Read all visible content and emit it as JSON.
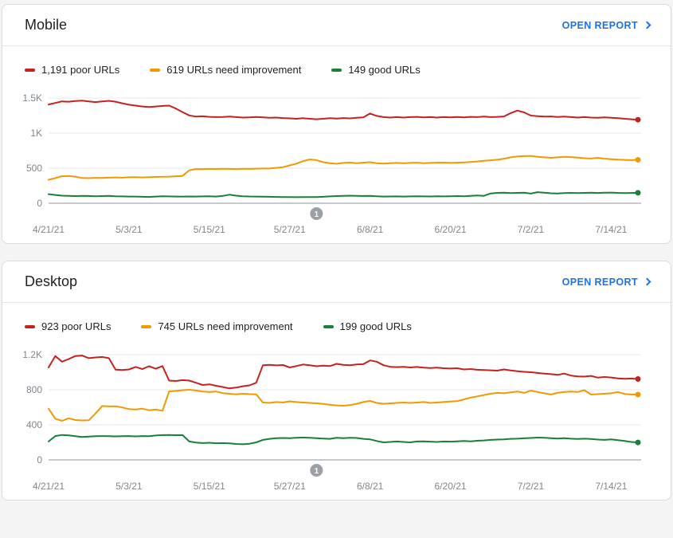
{
  "page": {
    "background": "#f4f4f4"
  },
  "colors": {
    "poor": "#c5221f",
    "needs_improvement": "#f29900",
    "good": "#188038",
    "link_blue": "#1a73e8",
    "title_text": "#202124",
    "legend_text": "#202124",
    "axis_text": "#80868b",
    "gridline": "#e8eaed",
    "zero_axis_line": "#909398",
    "annotation_marker": "#9aa0a6",
    "card_background": "#ffffff",
    "card_border": "#dadce0"
  },
  "cards": [
    {
      "title": "Mobile",
      "open_report": {
        "label": "OPEN REPORT",
        "icon": "chevron-right"
      },
      "legend": [
        {
          "label": "1,191 poor URLs",
          "count": "1,191",
          "status": "poor"
        },
        {
          "label": "619 URLs need improvement",
          "count": "619",
          "status": "needs improvement"
        },
        {
          "label": "149 good URLs",
          "count": "149",
          "status": "good"
        }
      ]
    },
    {
      "title": "Desktop",
      "open_report": {
        "label": "OPEN REPORT",
        "icon": "chevron-right"
      },
      "legend": [
        {
          "label": "923 poor URLs",
          "count": "923",
          "status": "poor"
        },
        {
          "label": "745 URLs need improvement",
          "count": "745",
          "status": "needs improvement"
        },
        {
          "label": "199 good URLs",
          "count": "199",
          "status": "good"
        }
      ]
    }
  ],
  "chart_data": [
    {
      "type": "line",
      "title": "Mobile",
      "grid": true,
      "legend_position": "top",
      "x_axis": {
        "tick_labels": [
          "4/21/21",
          "5/3/21",
          "5/15/21",
          "5/27/21",
          "6/8/21",
          "6/20/21",
          "7/2/21",
          "7/14/21"
        ],
        "tick_days": [
          0,
          12,
          24,
          36,
          48,
          60,
          72,
          84
        ],
        "days_total": 88
      },
      "y_axis": {
        "max": 1500,
        "ticks": [
          {
            "value": 0,
            "label": "0"
          },
          {
            "value": 500,
            "label": "500"
          },
          {
            "value": 1000,
            "label": "1K"
          },
          {
            "value": 1500,
            "label": "1.5K"
          }
        ]
      },
      "annotation": {
        "label": "1",
        "day": 40
      },
      "series": [
        {
          "name": "poor URLs",
          "color": "#c5221f",
          "end_value": 1191,
          "values": [
            1408,
            1430,
            1452,
            1448,
            1458,
            1462,
            1452,
            1442,
            1452,
            1460,
            1448,
            1425,
            1405,
            1392,
            1380,
            1372,
            1380,
            1388,
            1392,
            1350,
            1300,
            1252,
            1235,
            1240,
            1232,
            1228,
            1230,
            1235,
            1228,
            1222,
            1225,
            1230,
            1225,
            1218,
            1222,
            1215,
            1210,
            1205,
            1212,
            1205,
            1198,
            1205,
            1212,
            1208,
            1215,
            1210,
            1218,
            1225,
            1280,
            1245,
            1228,
            1222,
            1228,
            1222,
            1228,
            1232,
            1225,
            1228,
            1222,
            1228,
            1225,
            1230,
            1225,
            1232,
            1228,
            1235,
            1228,
            1232,
            1238,
            1285,
            1322,
            1295,
            1250,
            1242,
            1235,
            1238,
            1230,
            1235,
            1228,
            1222,
            1228,
            1222,
            1218,
            1225,
            1218,
            1212,
            1205,
            1198,
            1191
          ]
        },
        {
          "name": "URLs need improvement",
          "color": "#f29900",
          "end_value": 619,
          "values": [
            335,
            358,
            385,
            390,
            378,
            360,
            358,
            362,
            360,
            365,
            368,
            365,
            370,
            372,
            368,
            372,
            375,
            378,
            380,
            385,
            390,
            470,
            488,
            485,
            490,
            488,
            492,
            490,
            488,
            492,
            490,
            493,
            495,
            495,
            505,
            515,
            540,
            565,
            600,
            625,
            615,
            585,
            570,
            562,
            575,
            580,
            572,
            578,
            585,
            570,
            565,
            572,
            575,
            570,
            575,
            578,
            572,
            575,
            578,
            580,
            575,
            578,
            582,
            588,
            595,
            605,
            612,
            620,
            635,
            655,
            668,
            672,
            675,
            662,
            655,
            648,
            655,
            662,
            658,
            650,
            642,
            638,
            648,
            635,
            628,
            622,
            618,
            615,
            619
          ]
        },
        {
          "name": "good URLs",
          "color": "#188038",
          "end_value": 149,
          "values": [
            130,
            118,
            108,
            104,
            102,
            105,
            103,
            100,
            102,
            104,
            100,
            98,
            96,
            95,
            92,
            90,
            95,
            100,
            98,
            96,
            95,
            97,
            96,
            98,
            100,
            95,
            105,
            122,
            108,
            100,
            97,
            95,
            93,
            92,
            90,
            88,
            87,
            86,
            88,
            87,
            88,
            92,
            98,
            102,
            105,
            108,
            106,
            103,
            105,
            100,
            96,
            97,
            98,
            96,
            98,
            100,
            98,
            97,
            99,
            98,
            100,
            102,
            100,
            104,
            110,
            106,
            140,
            148,
            150,
            146,
            148,
            150,
            138,
            158,
            150,
            142,
            140,
            145,
            148,
            146,
            148,
            150,
            147,
            150,
            152,
            148,
            145,
            147,
            149
          ]
        }
      ]
    },
    {
      "type": "line",
      "title": "Desktop",
      "grid": true,
      "legend_position": "top",
      "x_axis": {
        "tick_labels": [
          "4/21/21",
          "5/3/21",
          "5/15/21",
          "5/27/21",
          "6/8/21",
          "6/20/21",
          "7/2/21",
          "7/14/21"
        ],
        "tick_days": [
          0,
          12,
          24,
          36,
          48,
          60,
          72,
          84
        ],
        "days_total": 88
      },
      "y_axis": {
        "max": 1200,
        "ticks": [
          {
            "value": 0,
            "label": "0"
          },
          {
            "value": 400,
            "label": "400"
          },
          {
            "value": 800,
            "label": "800"
          },
          {
            "value": 1200,
            "label": "1.2K"
          }
        ]
      },
      "annotation": {
        "label": "1",
        "day": 40
      },
      "series": [
        {
          "name": "poor URLs",
          "color": "#c5221f",
          "end_value": 923,
          "values": [
            1055,
            1185,
            1120,
            1150,
            1185,
            1190,
            1160,
            1168,
            1175,
            1160,
            1030,
            1025,
            1032,
            1060,
            1035,
            1068,
            1040,
            1070,
            905,
            900,
            910,
            905,
            880,
            855,
            862,
            845,
            832,
            815,
            825,
            840,
            850,
            880,
            1080,
            1085,
            1078,
            1082,
            1055,
            1070,
            1088,
            1080,
            1068,
            1075,
            1070,
            1095,
            1085,
            1080,
            1088,
            1092,
            1135,
            1120,
            1080,
            1062,
            1058,
            1062,
            1055,
            1060,
            1052,
            1048,
            1052,
            1045,
            1042,
            1045,
            1032,
            1036,
            1028,
            1025,
            1022,
            1018,
            1032,
            1020,
            1012,
            1005,
            1000,
            992,
            985,
            978,
            970,
            985,
            962,
            952,
            950,
            958,
            938,
            945,
            940,
            930,
            925,
            928,
            923
          ]
        },
        {
          "name": "URLs need improvement",
          "color": "#f29900",
          "end_value": 745,
          "values": [
            585,
            470,
            445,
            475,
            455,
            450,
            452,
            530,
            615,
            610,
            612,
            598,
            580,
            575,
            585,
            565,
            575,
            560,
            782,
            786,
            795,
            800,
            792,
            780,
            775,
            780,
            762,
            755,
            748,
            755,
            750,
            748,
            655,
            650,
            660,
            655,
            668,
            660,
            655,
            650,
            645,
            638,
            628,
            622,
            618,
            625,
            640,
            660,
            673,
            650,
            640,
            645,
            650,
            655,
            650,
            655,
            660,
            650,
            655,
            660,
            665,
            670,
            690,
            710,
            725,
            740,
            755,
            765,
            760,
            770,
            780,
            765,
            790,
            775,
            760,
            745,
            765,
            775,
            780,
            775,
            795,
            745,
            750,
            755,
            760,
            775,
            752,
            745,
            745
          ]
        },
        {
          "name": "good URLs",
          "color": "#188038",
          "end_value": 199,
          "values": [
            210,
            272,
            285,
            280,
            270,
            262,
            266,
            270,
            272,
            270,
            268,
            270,
            272,
            268,
            272,
            270,
            278,
            283,
            285,
            282,
            283,
            210,
            198,
            192,
            195,
            190,
            192,
            188,
            182,
            178,
            185,
            200,
            228,
            240,
            248,
            250,
            248,
            252,
            255,
            252,
            248,
            244,
            240,
            252,
            248,
            252,
            250,
            240,
            235,
            215,
            200,
            205,
            210,
            205,
            200,
            210,
            212,
            208,
            205,
            210,
            208,
            212,
            215,
            212,
            218,
            222,
            228,
            232,
            235,
            240,
            242,
            246,
            250,
            255,
            252,
            248,
            244,
            248,
            242,
            238,
            242,
            238,
            232,
            228,
            235,
            225,
            215,
            205,
            199
          ]
        }
      ]
    }
  ]
}
